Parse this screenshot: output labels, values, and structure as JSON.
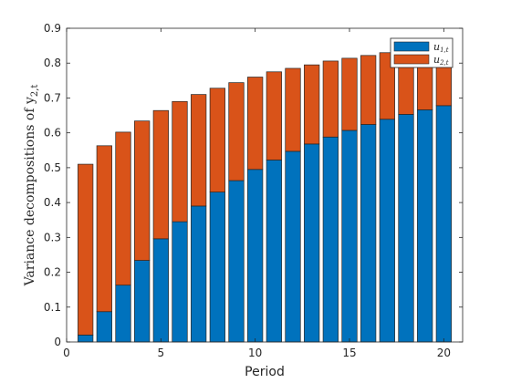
{
  "chart_data": {
    "type": "bar",
    "stacked": true,
    "title": "",
    "xlabel": "Period",
    "ylabel": "Variance decompositions of y",
    "ylabel_sub": "2,t",
    "x": [
      1,
      2,
      3,
      4,
      5,
      6,
      7,
      8,
      9,
      10,
      11,
      12,
      13,
      14,
      15,
      16,
      17,
      18,
      19,
      20
    ],
    "xlim": [
      0,
      21
    ],
    "ylim": [
      0,
      0.9
    ],
    "xticks": [
      0,
      5,
      10,
      15,
      20
    ],
    "yticks": [
      0,
      0.1,
      0.2,
      0.3,
      0.4,
      0.5,
      0.6,
      0.7,
      0.8,
      0.9
    ],
    "ytick_labels": [
      "0",
      "0.1",
      "0.2",
      "0.3",
      "0.4",
      "0.5",
      "0.6",
      "0.7",
      "0.8",
      "0.9"
    ],
    "grid": false,
    "legend_position": "top-right",
    "series": [
      {
        "name": "u",
        "name_sub": "1,t",
        "color": "#0072BD",
        "values": [
          0.02,
          0.087,
          0.163,
          0.234,
          0.296,
          0.345,
          0.39,
          0.43,
          0.463,
          0.495,
          0.522,
          0.547,
          0.568,
          0.588,
          0.607,
          0.624,
          0.639,
          0.653,
          0.666,
          0.678
        ]
      },
      {
        "name": "u",
        "name_sub": "2,t",
        "color": "#D95319",
        "values": [
          0.49,
          0.476,
          0.439,
          0.4,
          0.368,
          0.345,
          0.32,
          0.298,
          0.281,
          0.265,
          0.253,
          0.238,
          0.227,
          0.218,
          0.207,
          0.198,
          0.191,
          0.184,
          0.178,
          0.172
        ]
      }
    ]
  }
}
